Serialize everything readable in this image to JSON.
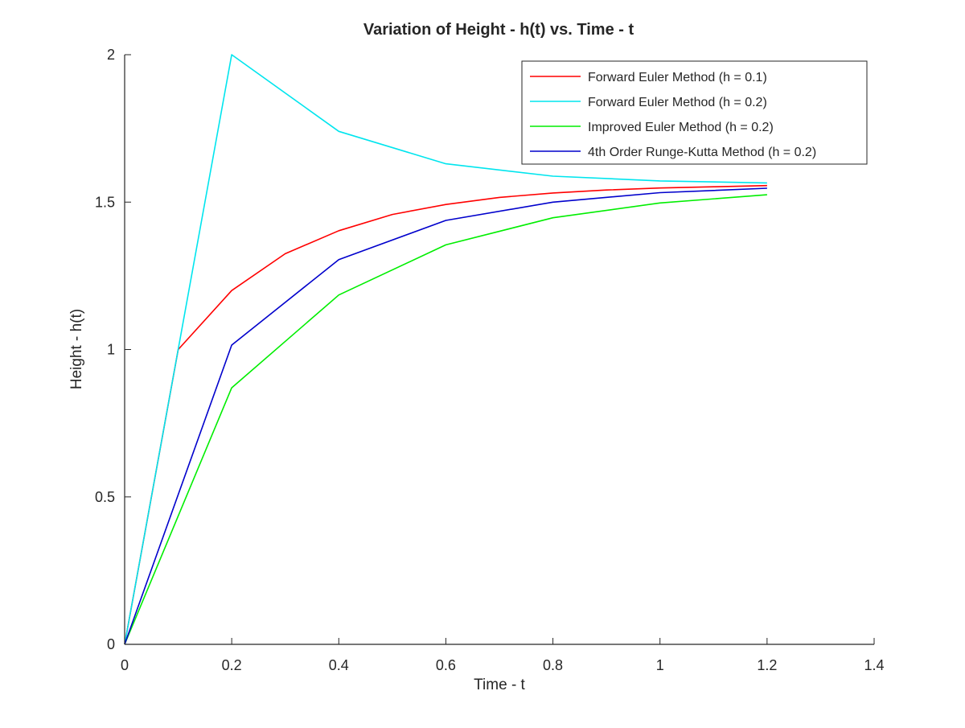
{
  "chart_data": {
    "type": "line",
    "title": "Variation of Height - h(t) vs. Time - t",
    "xlabel": "Time - t",
    "ylabel": "Height - h(t)",
    "xlim": [
      0,
      1.4
    ],
    "ylim": [
      0,
      2
    ],
    "xticks": [
      0,
      0.2,
      0.4,
      0.6,
      0.8,
      1,
      1.2,
      1.4
    ],
    "xtick_labels": [
      "0",
      "0.2",
      "0.4",
      "0.6",
      "0.8",
      "1",
      "1.2",
      "1.4"
    ],
    "yticks": [
      0,
      0.5,
      1,
      1.5,
      2
    ],
    "ytick_labels": [
      "0",
      "0.5",
      "1",
      "1.5",
      "2"
    ],
    "grid": false,
    "legend_position": "top-right",
    "series": [
      {
        "name": "Forward Euler Method (h = 0.1)",
        "color": "#ff0000",
        "x": [
          0,
          0.1,
          0.2,
          0.3,
          0.4,
          0.5,
          0.6,
          0.7,
          0.8,
          0.9,
          1.0,
          1.1,
          1.2
        ],
        "y": [
          0,
          1.0,
          1.2,
          1.325,
          1.403,
          1.458,
          1.492,
          1.516,
          1.531,
          1.541,
          1.548,
          1.552,
          1.556
        ]
      },
      {
        "name": "Forward Euler Method (h = 0.2)",
        "color": "#00e5ee",
        "x": [
          0,
          0.2,
          0.4,
          0.6,
          0.8,
          1.0,
          1.2
        ],
        "y": [
          0,
          2.0,
          1.74,
          1.63,
          1.588,
          1.572,
          1.565
        ]
      },
      {
        "name": "Improved Euler Method (h = 0.2)",
        "color": "#00ee00",
        "x": [
          0,
          0.2,
          0.4,
          0.6,
          0.8,
          1.0,
          1.2
        ],
        "y": [
          0,
          0.87,
          1.185,
          1.355,
          1.447,
          1.497,
          1.525
        ]
      },
      {
        "name": "4th Order Runge-Kutta Method (h = 0.2)",
        "color": "#0000cc",
        "x": [
          0,
          0.2,
          0.4,
          0.6,
          0.8,
          1.0,
          1.2
        ],
        "y": [
          0,
          1.015,
          1.305,
          1.438,
          1.5,
          1.532,
          1.547
        ]
      }
    ]
  }
}
